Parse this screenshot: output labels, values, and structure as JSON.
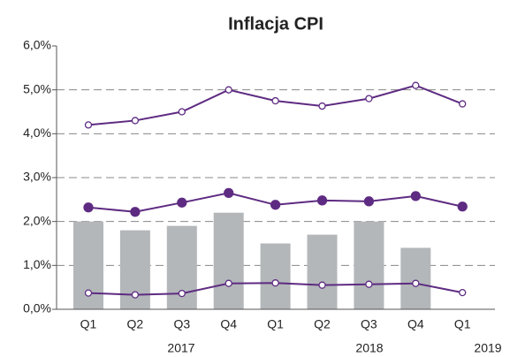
{
  "chart_data": {
    "type": "bar",
    "title": "Inflacja CPI",
    "categories": [
      "Q1",
      "Q2",
      "Q3",
      "Q4",
      "Q1",
      "Q2",
      "Q3",
      "Q4",
      "Q1"
    ],
    "years": [
      "2017",
      "2018",
      "2019"
    ],
    "ylim": [
      0,
      6
    ],
    "yticks": [
      {
        "value": 0,
        "label": "0,0%"
      },
      {
        "value": 1,
        "label": "1,0%"
      },
      {
        "value": 2,
        "label": "2,0%"
      },
      {
        "value": 3,
        "label": "3,0%"
      },
      {
        "value": 4,
        "label": "4,0%"
      },
      {
        "value": 5,
        "label": "5,0%"
      },
      {
        "value": 6,
        "label": "6,0%"
      }
    ],
    "grid": true,
    "series": [
      {
        "type": "bar",
        "color": "#b3b7ba",
        "values": [
          2.0,
          1.8,
          1.9,
          2.2,
          1.5,
          1.7,
          2.0,
          1.4,
          null
        ]
      },
      {
        "type": "line",
        "marker": "hollow",
        "color": "#5e2b82",
        "values": [
          4.2,
          4.3,
          4.5,
          5.0,
          4.75,
          4.63,
          4.8,
          5.1,
          4.68
        ]
      },
      {
        "type": "line",
        "marker": "filled",
        "color": "#5e2b82",
        "values": [
          2.32,
          2.22,
          2.43,
          2.65,
          2.38,
          2.48,
          2.46,
          2.58,
          2.34
        ]
      },
      {
        "type": "line",
        "marker": "hollow",
        "color": "#5e2b82",
        "values": [
          0.37,
          0.33,
          0.36,
          0.59,
          0.6,
          0.55,
          0.57,
          0.59,
          0.38
        ]
      }
    ]
  }
}
